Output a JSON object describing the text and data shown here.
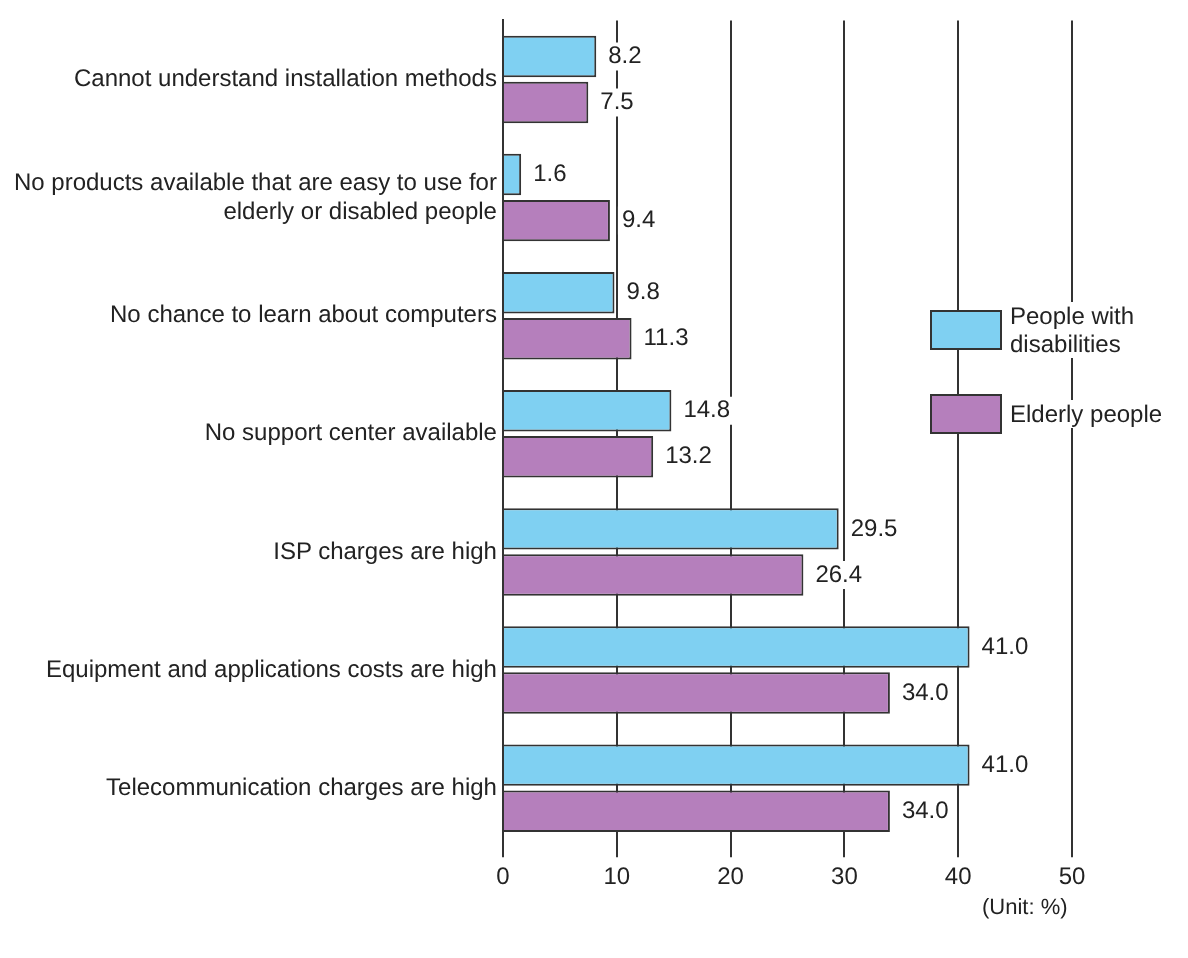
{
  "chart_data": {
    "type": "bar",
    "orientation": "horizontal",
    "categories": [
      "Cannot understand installation methods",
      "No products available that are easy to use for elderly or disabled people",
      "No chance to learn about computers",
      "No support center available",
      "ISP charges are high",
      "Equipment and applications costs are high",
      "Telecommunication charges are high"
    ],
    "series": [
      {
        "name": "People with disabilities",
        "color": "#7fd0f2",
        "values": [
          8.2,
          1.6,
          9.8,
          14.8,
          29.5,
          41.0,
          41.0
        ],
        "value_labels": [
          "8.2",
          "1.6",
          "9.8",
          "14.8",
          "29.5",
          "41.0",
          "41.0"
        ]
      },
      {
        "name": "Elderly people",
        "color": "#b57fbc",
        "values": [
          7.5,
          9.4,
          11.3,
          13.2,
          26.4,
          34.0,
          34.0
        ],
        "value_labels": [
          "7.5",
          "9.4",
          "11.3",
          "13.2",
          "26.4",
          "34.0",
          "34.0"
        ]
      }
    ],
    "xlim": [
      0,
      50
    ],
    "xticks": [
      0,
      10,
      20,
      30,
      40,
      50
    ],
    "grid": "x",
    "legend": "right",
    "annotations": [
      "(Unit: %)"
    ]
  }
}
